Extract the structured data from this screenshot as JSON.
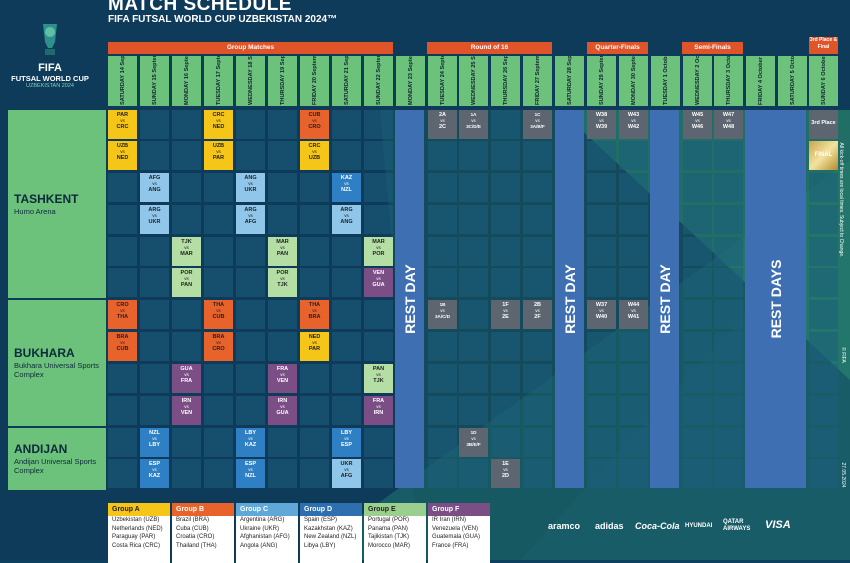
{
  "header": {
    "title": "MATCH SCHEDULE",
    "subtitle": "FIFA FUTSAL WORLD CUP UZBEKISTAN 2024™"
  },
  "logo": {
    "line1": "FIFA",
    "line2": "FUTSAL WORLD CUP",
    "line3": "UZBEKISTAN 2024"
  },
  "stages": {
    "group": "Group Matches",
    "r16": "Round of 16",
    "qf": "Quarter-Finals",
    "sf": "Semi-Finals",
    "final": "3rd Place & Final"
  },
  "days": [
    {
      "d": "SATURDAY",
      "date": "14 September"
    },
    {
      "d": "SUNDAY",
      "date": "15 September"
    },
    {
      "d": "MONDAY",
      "date": "16 September"
    },
    {
      "d": "TUESDAY",
      "date": "17 September"
    },
    {
      "d": "WEDNESDAY",
      "date": "18 September"
    },
    {
      "d": "THURSDAY",
      "date": "19 September"
    },
    {
      "d": "FRIDAY",
      "date": "20 September"
    },
    {
      "d": "SATURDAY",
      "date": "21 September"
    },
    {
      "d": "SUNDAY",
      "date": "22 September"
    },
    {
      "d": "MONDAY",
      "date": "23 September"
    },
    {
      "d": "TUESDAY",
      "date": "24 September"
    },
    {
      "d": "WEDNESDAY",
      "date": "25 September"
    },
    {
      "d": "THURSDAY",
      "date": "26 September"
    },
    {
      "d": "FRIDAY",
      "date": "27 September"
    },
    {
      "d": "SATURDAY",
      "date": "28 September"
    },
    {
      "d": "SUNDAY",
      "date": "29 September"
    },
    {
      "d": "MONDAY",
      "date": "30 September"
    },
    {
      "d": "TUESDAY",
      "date": "1 October"
    },
    {
      "d": "WEDNESDAY",
      "date": "2 October"
    },
    {
      "d": "THURSDAY",
      "date": "3 October"
    },
    {
      "d": "FRIDAY",
      "date": "4 October"
    },
    {
      "d": "SATURDAY",
      "date": "5 October"
    },
    {
      "d": "SUNDAY",
      "date": "6 October"
    }
  ],
  "cities": [
    {
      "name": "TASHKENT",
      "venue": "Humo Arena"
    },
    {
      "name": "BUKHARA",
      "venue": "Bukhara Universal Sports Complex"
    },
    {
      "name": "ANDIJAN",
      "venue": "Andijan Universal Sports Complex"
    }
  ],
  "rest_label": "REST DAY",
  "rest_label_plural": "REST DAYS",
  "third_place_label": "3rd Place",
  "final_label": "FINAL",
  "vs": "vs",
  "matches": [
    {
      "col": 0,
      "row": 0,
      "a": "PAR",
      "b": "CRC",
      "g": "A"
    },
    {
      "col": 0,
      "row": 1,
      "a": "UZB",
      "b": "NED",
      "g": "A"
    },
    {
      "col": 3,
      "row": 0,
      "a": "CRC",
      "b": "NED",
      "g": "A"
    },
    {
      "col": 3,
      "row": 1,
      "a": "UZB",
      "b": "PAR",
      "g": "A"
    },
    {
      "col": 6,
      "row": 0,
      "a": "CUB",
      "b": "CRO",
      "g": "B"
    },
    {
      "col": 6,
      "row": 1,
      "a": "CRC",
      "b": "UZB",
      "g": "A"
    },
    {
      "col": 1,
      "row": 2,
      "a": "AFG",
      "b": "ANG",
      "g": "C"
    },
    {
      "col": 1,
      "row": 3,
      "a": "ARG",
      "b": "UKR",
      "g": "C"
    },
    {
      "col": 4,
      "row": 2,
      "a": "ANG",
      "b": "UKR",
      "g": "C"
    },
    {
      "col": 4,
      "row": 3,
      "a": "ARG",
      "b": "AFG",
      "g": "C"
    },
    {
      "col": 7,
      "row": 2,
      "a": "KAZ",
      "b": "NZL",
      "g": "D"
    },
    {
      "col": 7,
      "row": 3,
      "a": "ARG",
      "b": "ANG",
      "g": "C"
    },
    {
      "col": 2,
      "row": 4,
      "a": "TJK",
      "b": "MAR",
      "g": "E"
    },
    {
      "col": 2,
      "row": 5,
      "a": "POR",
      "b": "PAN",
      "g": "E"
    },
    {
      "col": 5,
      "row": 4,
      "a": "MAR",
      "b": "PAN",
      "g": "E"
    },
    {
      "col": 5,
      "row": 5,
      "a": "POR",
      "b": "TJK",
      "g": "E"
    },
    {
      "col": 8,
      "row": 4,
      "a": "MAR",
      "b": "POR",
      "g": "E"
    },
    {
      "col": 8,
      "row": 5,
      "a": "VEN",
      "b": "GUA",
      "g": "F"
    },
    {
      "col": 0,
      "row": 6,
      "a": "CRO",
      "b": "THA",
      "g": "B"
    },
    {
      "col": 0,
      "row": 7,
      "a": "BRA",
      "b": "CUB",
      "g": "B"
    },
    {
      "col": 3,
      "row": 6,
      "a": "THA",
      "b": "CUB",
      "g": "B"
    },
    {
      "col": 3,
      "row": 7,
      "a": "BRA",
      "b": "CRO",
      "g": "B"
    },
    {
      "col": 6,
      "row": 6,
      "a": "THA",
      "b": "BRA",
      "g": "B"
    },
    {
      "col": 6,
      "row": 7,
      "a": "NED",
      "b": "PAR",
      "g": "A"
    },
    {
      "col": 2,
      "row": 8,
      "a": "GUA",
      "b": "FRA",
      "g": "F"
    },
    {
      "col": 2,
      "row": 9,
      "a": "IRN",
      "b": "VEN",
      "g": "F"
    },
    {
      "col": 5,
      "row": 8,
      "a": "FRA",
      "b": "VEN",
      "g": "F"
    },
    {
      "col": 5,
      "row": 9,
      "a": "IRN",
      "b": "GUA",
      "g": "F"
    },
    {
      "col": 8,
      "row": 8,
      "a": "PAN",
      "b": "TJK",
      "g": "E"
    },
    {
      "col": 8,
      "row": 9,
      "a": "FRA",
      "b": "IRN",
      "g": "F"
    },
    {
      "col": 1,
      "row": 10,
      "a": "NZL",
      "b": "LBY",
      "g": "D"
    },
    {
      "col": 1,
      "row": 11,
      "a": "ESP",
      "b": "KAZ",
      "g": "D"
    },
    {
      "col": 4,
      "row": 10,
      "a": "LBY",
      "b": "KAZ",
      "g": "D"
    },
    {
      "col": 4,
      "row": 11,
      "a": "ESP",
      "b": "NZL",
      "g": "D"
    },
    {
      "col": 7,
      "row": 10,
      "a": "LBY",
      "b": "ESP",
      "g": "D"
    },
    {
      "col": 7,
      "row": 11,
      "a": "UKR",
      "b": "AFG",
      "g": "C"
    },
    {
      "col": 10,
      "row": 0,
      "a": "2A",
      "b": "2C",
      "g": "K"
    },
    {
      "col": 11,
      "row": 0,
      "a": "1A",
      "b": "3C/D/E",
      "g": "K"
    },
    {
      "col": 13,
      "row": 0,
      "a": "1C",
      "b": "3A/B/F",
      "g": "K"
    },
    {
      "col": 15,
      "row": 0,
      "a": "W38",
      "b": "W39",
      "g": "K"
    },
    {
      "col": 16,
      "row": 0,
      "a": "W43",
      "b": "W42",
      "g": "K"
    },
    {
      "col": 18,
      "row": 0,
      "a": "W45",
      "b": "W46",
      "g": "K"
    },
    {
      "col": 19,
      "row": 0,
      "a": "W47",
      "b": "W48",
      "g": "K"
    },
    {
      "col": 10,
      "row": 6,
      "a": "1B",
      "b": "3A/C/D",
      "g": "K"
    },
    {
      "col": 12,
      "row": 6,
      "a": "1F",
      "b": "2E",
      "g": "K"
    },
    {
      "col": 13,
      "row": 6,
      "a": "2B",
      "b": "2F",
      "g": "K"
    },
    {
      "col": 15,
      "row": 6,
      "a": "W37",
      "b": "W40",
      "g": "K"
    },
    {
      "col": 16,
      "row": 6,
      "a": "W44",
      "b": "W41",
      "g": "K"
    },
    {
      "col": 11,
      "row": 10,
      "a": "1D",
      "b": "3B/E/F",
      "g": "K"
    },
    {
      "col": 12,
      "row": 11,
      "a": "1E",
      "b": "2D",
      "g": "K"
    }
  ],
  "groups": [
    {
      "name": "Group A",
      "color": "#f5c518",
      "teams": [
        "Uzbekistan (UZB)",
        "Netherlands (NED)",
        "Paraguay (PAR)",
        "Costa Rica (CRC)"
      ]
    },
    {
      "name": "Group B",
      "color": "#e8622c",
      "teams": [
        "Brazil (BRA)",
        "Cuba (CUB)",
        "Croatia (CRO)",
        "Thailand (THA)"
      ]
    },
    {
      "name": "Group C",
      "color": "#5fa8d8",
      "teams": [
        "Argentina (ARG)",
        "Ukraine (UKR)",
        "Afghanistan (AFG)",
        "Angola (ANG)"
      ]
    },
    {
      "name": "Group D",
      "color": "#2e6fb0",
      "teams": [
        "Spain (ESP)",
        "Kazakhstan (KAZ)",
        "New Zealand (NZL)",
        "Libya (LBY)"
      ]
    },
    {
      "name": "Group E",
      "color": "#9bcf8e",
      "teams": [
        "Portugal (POR)",
        "Panama (PAN)",
        "Tajikistan (TJK)",
        "Morocco (MAR)"
      ]
    },
    {
      "name": "Group F",
      "color": "#7b4f86",
      "teams": [
        "IR Iran (IRN)",
        "Venezuela (VEN)",
        "Guatemala (GUA)",
        "France (FRA)"
      ]
    }
  ],
  "side_note": "All kick-off times are local times. Subject to Change.",
  "copyright": "© FIFA",
  "doc_date": "27.05.2024",
  "sponsors": [
    "aramco",
    "adidas",
    "Coca-Cola",
    "HYUNDAI",
    "QATAR AIRWAYS",
    "VISA"
  ],
  "colors": {
    "A": "#f5c518",
    "B": "#e8622c",
    "C": "#8fc6ea",
    "D": "#2e7fc4",
    "E": "#b5dea5",
    "F": "#7b4f86",
    "K": "#5d6670"
  }
}
